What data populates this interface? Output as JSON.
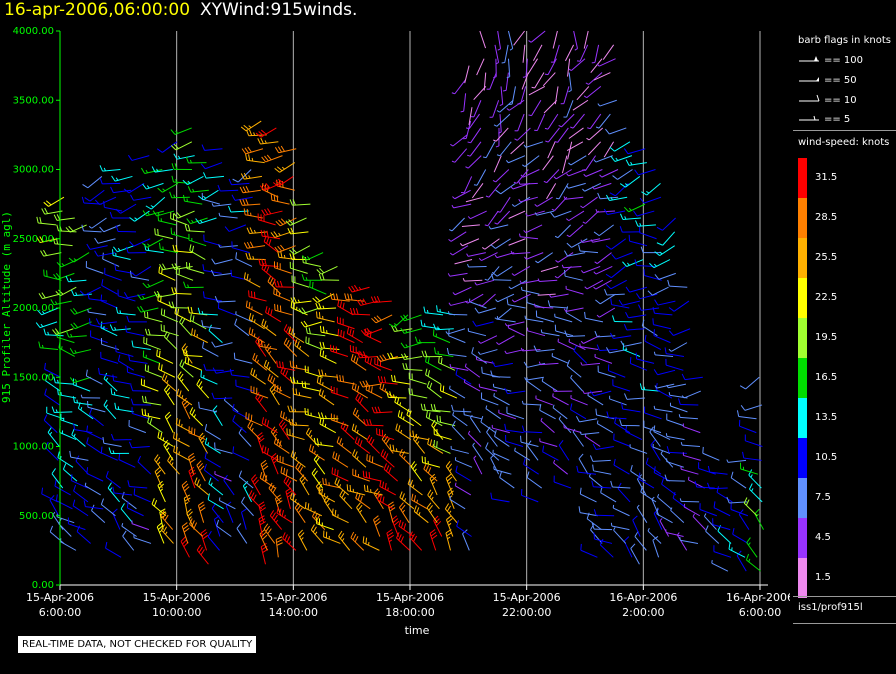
{
  "header": {
    "date": "16-apr-2006,06:00:00",
    "product": "XYWind:915winds."
  },
  "legend": {
    "flags_title": "barb flags in knots",
    "flags": [
      "== 100",
      "== 50",
      "== 10",
      "== 5"
    ],
    "speed_title": "wind-speed: knots",
    "speed_levels": [
      "31.5",
      "28.5",
      "25.5",
      "22.5",
      "19.5",
      "16.5",
      "13.5",
      "10.5",
      "7.5",
      "4.5",
      "1.5"
    ],
    "speed_colors": [
      "#ff0000",
      "#ff8000",
      "#ffb000",
      "#ffff00",
      "#a0ff30",
      "#00dd00",
      "#00ffff",
      "#0000ff",
      "#6090ff",
      "#9933ff",
      "#ee88ee"
    ],
    "station": "iss1/prof915l"
  },
  "banner": "REAL-TIME DATA, NOT CHECKED FOR QUALITY",
  "chart_data": {
    "type": "scatter",
    "xlabel": "time",
    "ylabel": "915 Profiler Altitude (m agl)",
    "ylim": [
      0,
      4000
    ],
    "yticks": [
      "0.00",
      "500.00",
      "1000.00",
      "1500.00",
      "2000.00",
      "2500.00",
      "3000.00",
      "3500.00",
      "4000.00"
    ],
    "xticks": [
      {
        "date": "15-Apr-2006",
        "time": "6:00:00"
      },
      {
        "date": "15-Apr-2006",
        "time": "10:00:00"
      },
      {
        "date": "15-Apr-2006",
        "time": "14:00:00"
      },
      {
        "date": "15-Apr-2006",
        "time": "18:00:00"
      },
      {
        "date": "15-Apr-2006",
        "time": "22:00:00"
      },
      {
        "date": "16-Apr-2006",
        "time": "2:00:00"
      },
      {
        "date": "16-Apr-2006",
        "time": "6:00:00"
      }
    ],
    "xlim_hours": [
      0,
      24
    ],
    "grid": "vertical at x ticks",
    "profiles": [
      {
        "hour": 0.0,
        "top": 2800,
        "bottom": 300,
        "dir0": 250,
        "dir1": 320,
        "spd0": 20,
        "spd1": 8
      },
      {
        "hour": 0.5,
        "top": 2700,
        "bottom": 250,
        "dir0": 245,
        "dir1": 315,
        "spd0": 22,
        "spd1": 7
      },
      {
        "hour": 1.0,
        "top": 2600,
        "bottom": 300,
        "dir0": 240,
        "dir1": 310,
        "spd0": 18,
        "spd1": 9
      },
      {
        "hour": 1.5,
        "top": 3050,
        "bottom": 350,
        "dir0": 250,
        "dir1": 300,
        "spd0": 10,
        "spd1": 8
      },
      {
        "hour": 2.0,
        "top": 3000,
        "bottom": 200,
        "dir0": 255,
        "dir1": 320,
        "spd0": 11,
        "spd1": 12
      },
      {
        "hour": 2.5,
        "top": 2950,
        "bottom": 250,
        "dir0": 250,
        "dir1": 310,
        "spd0": 13,
        "spd1": 10
      },
      {
        "hour": 3.0,
        "top": 3100,
        "bottom": 300,
        "dir0": 240,
        "dir1": 300,
        "spd0": 12,
        "spd1": 8
      },
      {
        "hour": 3.5,
        "top": 3000,
        "bottom": 300,
        "dir0": 245,
        "dir1": 330,
        "spd0": 13,
        "spd1": 25
      },
      {
        "hour": 4.0,
        "top": 3200,
        "bottom": 200,
        "dir0": 250,
        "dir1": 340,
        "spd0": 14,
        "spd1": 28
      },
      {
        "hour": 4.5,
        "top": 3300,
        "bottom": 200,
        "dir0": 255,
        "dir1": 340,
        "spd0": 15,
        "spd1": 30
      },
      {
        "hour": 5.0,
        "top": 3100,
        "bottom": 150,
        "dir0": 260,
        "dir1": 330,
        "spd0": 13,
        "spd1": 31
      },
      {
        "hour": 5.5,
        "top": 3200,
        "bottom": 250,
        "dir0": 250,
        "dir1": 330,
        "spd0": 10,
        "spd1": 12
      },
      {
        "hour": 6.0,
        "top": 2900,
        "bottom": 350,
        "dir0": 245,
        "dir1": 320,
        "spd0": 9,
        "spd1": 8
      },
      {
        "hour": 6.5,
        "top": 3000,
        "bottom": 300,
        "dir0": 250,
        "dir1": 330,
        "spd0": 10,
        "spd1": 10
      },
      {
        "hour": 7.0,
        "top": 3400,
        "bottom": 150,
        "dir0": 255,
        "dir1": 340,
        "spd0": 26,
        "spd1": 30
      },
      {
        "hour": 7.5,
        "top": 3350,
        "bottom": 200,
        "dir0": 260,
        "dir1": 335,
        "spd0": 29,
        "spd1": 30
      },
      {
        "hour": 8.0,
        "top": 3300,
        "bottom": 250,
        "dir0": 250,
        "dir1": 330,
        "spd0": 27,
        "spd1": 31
      },
      {
        "hour": 8.5,
        "top": 2800,
        "bottom": 250,
        "dir0": 255,
        "dir1": 320,
        "spd0": 20,
        "spd1": 29
      },
      {
        "hour": 9.0,
        "top": 2400,
        "bottom": 300,
        "dir0": 260,
        "dir1": 320,
        "spd0": 18,
        "spd1": 27
      },
      {
        "hour": 9.5,
        "top": 2300,
        "bottom": 300,
        "dir0": 255,
        "dir1": 315,
        "spd0": 21,
        "spd1": 26
      },
      {
        "hour": 10.0,
        "top": 2150,
        "bottom": 250,
        "dir0": 270,
        "dir1": 320,
        "spd0": 30,
        "spd1": 27
      },
      {
        "hour": 10.5,
        "top": 2150,
        "bottom": 250,
        "dir0": 265,
        "dir1": 320,
        "spd0": 31,
        "spd1": 28
      },
      {
        "hour": 11.0,
        "top": 2150,
        "bottom": 250,
        "dir0": 260,
        "dir1": 320,
        "spd0": 30,
        "spd1": 29
      },
      {
        "hour": 11.5,
        "top": 2100,
        "bottom": 250,
        "dir0": 255,
        "dir1": 330,
        "spd0": 30,
        "spd1": 30
      },
      {
        "hour": 12.0,
        "top": 2000,
        "bottom": 250,
        "dir0": 250,
        "dir1": 330,
        "spd0": 18,
        "spd1": 29
      },
      {
        "hour": 12.5,
        "top": 1950,
        "bottom": 250,
        "dir0": 250,
        "dir1": 340,
        "spd0": 15,
        "spd1": 28
      },
      {
        "hour": 13.0,
        "top": 1950,
        "bottom": 250,
        "dir0": 255,
        "dir1": 335,
        "spd0": 14,
        "spd1": 30
      },
      {
        "hour": 13.5,
        "top": 2050,
        "bottom": 250,
        "dir0": 260,
        "dir1": 330,
        "spd0": 13,
        "spd1": 29
      },
      {
        "hour": 14.0,
        "top": 3800,
        "bottom": 250,
        "dir0": 200,
        "dir1": 320,
        "spd0": 3,
        "spd1": 8
      },
      {
        "hour": 14.5,
        "top": 4000,
        "bottom": 800,
        "dir0": 180,
        "dir1": 320,
        "spd0": 2,
        "spd1": 7
      },
      {
        "hour": 15.0,
        "top": 4000,
        "bottom": 800,
        "dir0": 170,
        "dir1": 310,
        "spd0": 3,
        "spd1": 8
      },
      {
        "hour": 15.5,
        "top": 4000,
        "bottom": 600,
        "dir0": 190,
        "dir1": 300,
        "spd0": 4,
        "spd1": 9
      },
      {
        "hour": 16.0,
        "top": 4000,
        "bottom": 900,
        "dir0": 200,
        "dir1": 300,
        "spd0": 2,
        "spd1": 8
      },
      {
        "hour": 16.5,
        "top": 4000,
        "bottom": 600,
        "dir0": 210,
        "dir1": 310,
        "spd0": 3,
        "spd1": 9
      },
      {
        "hour": 17.0,
        "top": 4000,
        "bottom": 900,
        "dir0": 190,
        "dir1": 300,
        "spd0": 2,
        "spd1": 7
      },
      {
        "hour": 17.5,
        "top": 4000,
        "bottom": 700,
        "dir0": 180,
        "dir1": 310,
        "spd0": 3,
        "spd1": 8
      },
      {
        "hour": 18.0,
        "top": 4000,
        "bottom": 800,
        "dir0": 200,
        "dir1": 320,
        "spd0": 2,
        "spd1": 9
      },
      {
        "hour": 18.5,
        "top": 3950,
        "bottom": 200,
        "dir0": 210,
        "dir1": 310,
        "spd0": 3,
        "spd1": 9
      },
      {
        "hour": 19.0,
        "top": 3900,
        "bottom": 200,
        "dir0": 220,
        "dir1": 300,
        "spd0": 4,
        "spd1": 10
      },
      {
        "hour": 19.5,
        "top": 3300,
        "bottom": 200,
        "dir0": 230,
        "dir1": 310,
        "spd0": 11,
        "spd1": 8
      },
      {
        "hour": 20.0,
        "top": 3200,
        "bottom": 150,
        "dir0": 240,
        "dir1": 320,
        "spd0": 14,
        "spd1": 7
      },
      {
        "hour": 20.5,
        "top": 3050,
        "bottom": 200,
        "dir0": 250,
        "dir1": 330,
        "spd0": 12,
        "spd1": 9
      },
      {
        "hour": 21.0,
        "top": 2700,
        "bottom": 250,
        "dir0": 240,
        "dir1": 320,
        "spd0": 11,
        "spd1": 8
      },
      {
        "hour": 21.5,
        "top": 2200,
        "bottom": 250,
        "dir0": 250,
        "dir1": 310,
        "spd0": 9,
        "spd1": 7
      },
      {
        "hour": 22.0,
        "top": 1500,
        "bottom": 300,
        "dir0": 260,
        "dir1": 300,
        "spd0": 8,
        "spd1": 6
      },
      {
        "hour": 22.5,
        "top": 900,
        "bottom": 300,
        "dir0": 270,
        "dir1": 300,
        "spd0": 7,
        "spd1": 8
      },
      {
        "hour": 23.0,
        "top": 950,
        "bottom": 100,
        "dir0": 260,
        "dir1": 320,
        "spd0": 9,
        "spd1": 10
      },
      {
        "hour": 23.5,
        "top": 1000,
        "bottom": 100,
        "dir0": 255,
        "dir1": 330,
        "spd0": 8,
        "spd1": 12
      },
      {
        "hour": 24.0,
        "top": 1500,
        "bottom": 100,
        "dir0": 250,
        "dir1": 330,
        "spd0": 9,
        "spd1": 18
      }
    ]
  }
}
